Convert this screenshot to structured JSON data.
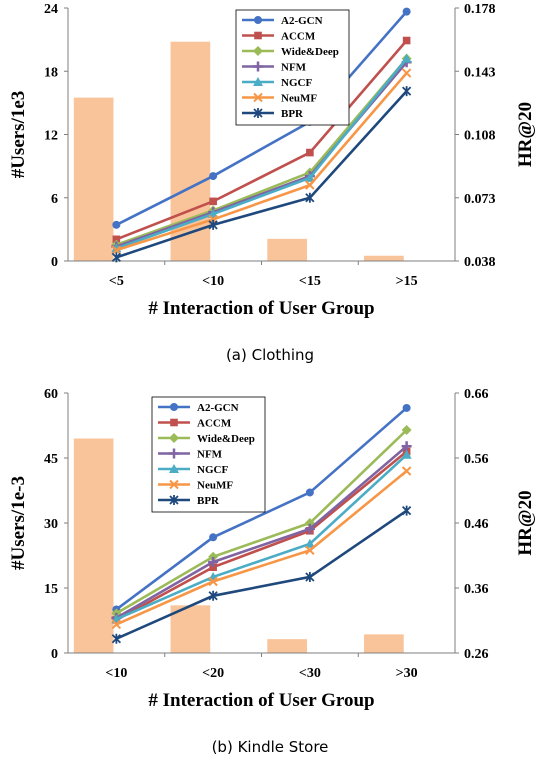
{
  "chart_data": [
    {
      "type": "bar+line",
      "caption": "(a) Clothing",
      "categories": [
        "<5",
        "<10",
        "<15",
        ">15"
      ],
      "xlabel": "# Interaction of User Group",
      "ylabel_left": "#Users/1e3",
      "ylabel_right": "HR@20",
      "ylim_left": [
        0,
        24
      ],
      "yticks_left": [
        "0",
        "6",
        "12",
        "18",
        "24"
      ],
      "ylim_right": [
        0.038,
        0.178
      ],
      "yticks_right": [
        "0.038",
        "0.073",
        "0.108",
        "0.143",
        "0.178"
      ],
      "bar_color": "#f9c49a",
      "bars": [
        15.5,
        20.8,
        2.1,
        0.5
      ],
      "series": [
        {
          "name": "A2-GCN",
          "color": "#4472c4",
          "marker": "circle",
          "values": [
            0.058,
            0.085,
            0.115,
            0.176
          ]
        },
        {
          "name": "ACCM",
          "color": "#c0504d",
          "marker": "square",
          "values": [
            0.05,
            0.071,
            0.098,
            0.16
          ]
        },
        {
          "name": "Wide&Deep",
          "color": "#9bbb59",
          "marker": "diamond",
          "values": [
            0.047,
            0.066,
            0.087,
            0.15
          ]
        },
        {
          "name": "NFM",
          "color": "#8064a2",
          "marker": "cross",
          "values": [
            0.046,
            0.065,
            0.085,
            0.148
          ]
        },
        {
          "name": "NGCF",
          "color": "#4bacc6",
          "marker": "triangle",
          "values": [
            0.045,
            0.064,
            0.084,
            0.15
          ]
        },
        {
          "name": "NeuMF",
          "color": "#f79646",
          "marker": "x",
          "values": [
            0.044,
            0.061,
            0.08,
            0.142
          ]
        },
        {
          "name": "BPR",
          "color": "#1f497d",
          "marker": "star",
          "values": [
            0.04,
            0.058,
            0.073,
            0.132
          ]
        }
      ]
    },
    {
      "type": "bar+line",
      "caption": "(b) Kindle Store",
      "categories": [
        "<10",
        "<20",
        "<30",
        ">30"
      ],
      "xlabel": "# Interaction of User Group",
      "ylabel_left": "#Users/1e-3",
      "ylabel_right": "HR@20",
      "ylim_left": [
        0,
        60
      ],
      "yticks_left": [
        "0",
        "15",
        "30",
        "45",
        "60"
      ],
      "ylim_right": [
        0.26,
        0.66
      ],
      "yticks_right": [
        "0.26",
        "0.36",
        "0.46",
        "0.56",
        "0.66"
      ],
      "bar_color": "#f9c49a",
      "bars": [
        49.5,
        11.0,
        3.2,
        4.3
      ],
      "series": [
        {
          "name": "A2-GCN",
          "color": "#4472c4",
          "marker": "circle",
          "values": [
            0.327,
            0.438,
            0.507,
            0.637
          ]
        },
        {
          "name": "ACCM",
          "color": "#c0504d",
          "marker": "square",
          "values": [
            0.311,
            0.392,
            0.448,
            0.57
          ]
        },
        {
          "name": "Wide&Deep",
          "color": "#9bbb59",
          "marker": "diamond",
          "values": [
            0.321,
            0.408,
            0.46,
            0.603
          ]
        },
        {
          "name": "NFM",
          "color": "#8064a2",
          "marker": "cross",
          "values": [
            0.314,
            0.4,
            0.451,
            0.578
          ]
        },
        {
          "name": "NGCF",
          "color": "#4bacc6",
          "marker": "triangle",
          "values": [
            0.312,
            0.377,
            0.428,
            0.565
          ]
        },
        {
          "name": "NeuMF",
          "color": "#f79646",
          "marker": "x",
          "values": [
            0.304,
            0.37,
            0.418,
            0.54
          ]
        },
        {
          "name": "BPR",
          "color": "#1f497d",
          "marker": "star",
          "values": [
            0.282,
            0.348,
            0.377,
            0.479
          ]
        }
      ]
    }
  ]
}
